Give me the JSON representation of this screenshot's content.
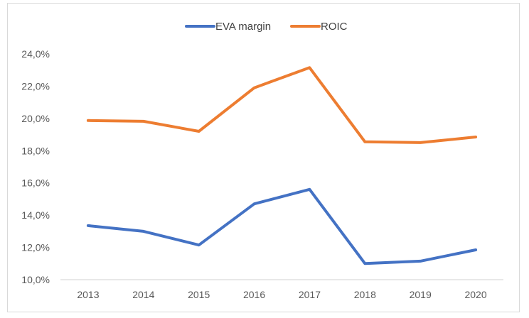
{
  "chart_data": {
    "type": "line",
    "title": "",
    "xlabel": "",
    "ylabel": "",
    "categories": [
      "2013",
      "2014",
      "2015",
      "2016",
      "2017",
      "2018",
      "2019",
      "2020"
    ],
    "series": [
      {
        "name": "EVA margin",
        "color": "#4472C4",
        "values": [
          13.35,
          13.0,
          12.15,
          14.7,
          15.6,
          11.0,
          11.15,
          11.85
        ]
      },
      {
        "name": "ROIC",
        "color": "#ED7D31",
        "values": [
          19.87,
          19.82,
          19.2,
          21.9,
          23.15,
          18.55,
          18.5,
          18.85
        ]
      }
    ],
    "ylim": [
      10,
      24
    ],
    "yticks": [
      10,
      12,
      14,
      16,
      18,
      20,
      22,
      24
    ],
    "ytick_labels": [
      "10,0%",
      "12,0%",
      "14,0%",
      "16,0%",
      "18,0%",
      "20,0%",
      "22,0%",
      "24,0%"
    ],
    "grid": false,
    "legend": "top-center"
  }
}
